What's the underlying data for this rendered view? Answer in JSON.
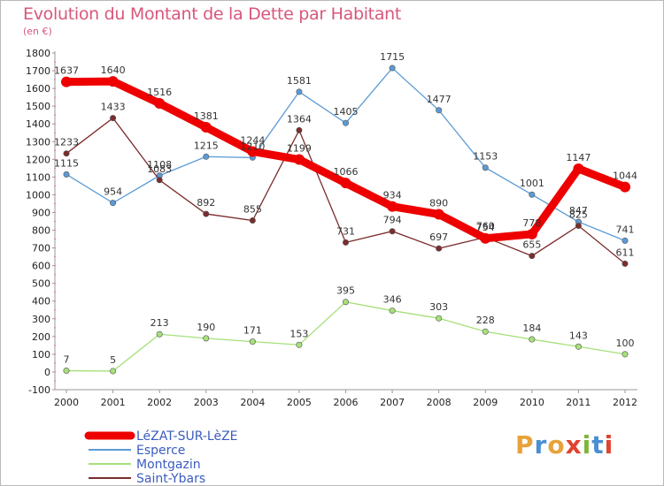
{
  "header": {
    "title": "Evolution du Montant de la Dette par Habitant",
    "subtitle": "(en €)"
  },
  "logo": {
    "text": "Proxiti",
    "colors": [
      "#e8a23a",
      "#4a8fd0",
      "#e8a23a",
      "#e0432f",
      "#7fb63a",
      "#4a8fd0",
      "#e0432f"
    ]
  },
  "chart_data": {
    "type": "line",
    "title": "Evolution du Montant de la Dette par Habitant",
    "subtitle": "(en €)",
    "xlabel": "",
    "ylabel": "",
    "x": [
      "2000",
      "2001",
      "2002",
      "2003",
      "2004",
      "2005",
      "2006",
      "2007",
      "2008",
      "2009",
      "2010",
      "2011",
      "2012"
    ],
    "ylim": [
      -100,
      1800
    ],
    "yticks": [
      -100,
      0,
      100,
      200,
      300,
      400,
      500,
      600,
      700,
      800,
      900,
      1000,
      1100,
      1200,
      1300,
      1400,
      1500,
      1600,
      1700,
      1800
    ],
    "grid": false,
    "legend": "bottom-left",
    "series": [
      {
        "name": "LéZAT-SUR-LèZE",
        "color": "#ee0000",
        "emphasis": true,
        "values": [
          1637,
          1640,
          1516,
          1381,
          1244,
          1199,
          1066,
          934,
          890,
          754,
          778,
          1147,
          1044
        ]
      },
      {
        "name": "Esperce",
        "color": "#5b9bd5",
        "emphasis": false,
        "values": [
          1115,
          954,
          1108,
          1215,
          1210,
          1581,
          1405,
          1715,
          1477,
          1153,
          1001,
          847,
          741
        ]
      },
      {
        "name": "Montgazin",
        "color": "#a6e07a",
        "emphasis": false,
        "values": [
          7,
          5,
          213,
          190,
          171,
          153,
          395,
          346,
          303,
          228,
          184,
          143,
          100
        ]
      },
      {
        "name": "Saint-Ybars",
        "color": "#7b2d2d",
        "emphasis": false,
        "values": [
          1233,
          1433,
          1083,
          892,
          855,
          1364,
          731,
          794,
          697,
          760,
          655,
          825,
          611
        ]
      }
    ]
  }
}
